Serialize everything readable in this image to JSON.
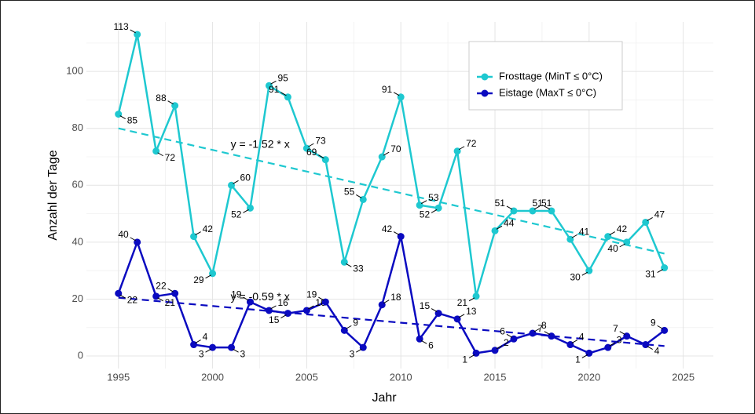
{
  "chart_data": {
    "type": "line",
    "x_label": "Jahr",
    "y_label": "Anzahl der Tage",
    "x": [
      1995,
      1996,
      1997,
      1998,
      1999,
      2000,
      2001,
      2002,
      2003,
      2004,
      2005,
      2006,
      2007,
      2008,
      2009,
      2010,
      2011,
      2012,
      2013,
      2014,
      2015,
      2016,
      2017,
      2018,
      2019,
      2020,
      2021,
      2022,
      2023,
      2024
    ],
    "series": [
      {
        "name": "Frosttage (MinT ≤ 0°C)",
        "color": "#1ec8d0",
        "values": [
          85,
          113,
          72,
          88,
          42,
          29,
          60,
          52,
          95,
          91,
          73,
          69,
          33,
          55,
          70,
          91,
          53,
          52,
          72,
          21,
          44,
          51,
          51,
          51,
          41,
          30,
          42,
          40,
          47,
          31
        ]
      },
      {
        "name": "Eistage (MaxT ≤ 0°C)",
        "color": "#0a0ac0",
        "values": [
          22,
          40,
          21,
          22,
          4,
          3,
          3,
          19,
          16,
          15,
          16,
          19,
          9,
          3,
          18,
          42,
          6,
          15,
          13,
          1,
          2,
          6,
          8,
          7,
          4,
          1,
          3,
          7,
          4,
          9
        ]
      }
    ],
    "trendlines": [
      {
        "label": "y = -1.52 * x",
        "color": "#1ec8d0",
        "x": [
          1995,
          2024
        ],
        "values": [
          80,
          36
        ]
      },
      {
        "label": "y = -0.59 * x",
        "color": "#0a0ac0",
        "x": [
          1995,
          2024
        ],
        "values": [
          20.5,
          3.5
        ]
      }
    ],
    "xlim": [
      1993.3,
      2026.6
    ],
    "ylim": [
      -4.4,
      117.4
    ],
    "xticks": [
      1995,
      2000,
      2005,
      2010,
      2015,
      2020,
      2025
    ],
    "yticks": [
      0,
      20,
      40,
      60,
      80,
      100
    ],
    "x_minor_ticks": [
      1997.5,
      2002.5,
      2007.5,
      2012.5,
      2017.5,
      2022.5
    ],
    "y_minor_ticks": [
      10,
      30,
      50,
      70,
      90,
      110
    ],
    "grid": true,
    "legend": "top-right"
  }
}
